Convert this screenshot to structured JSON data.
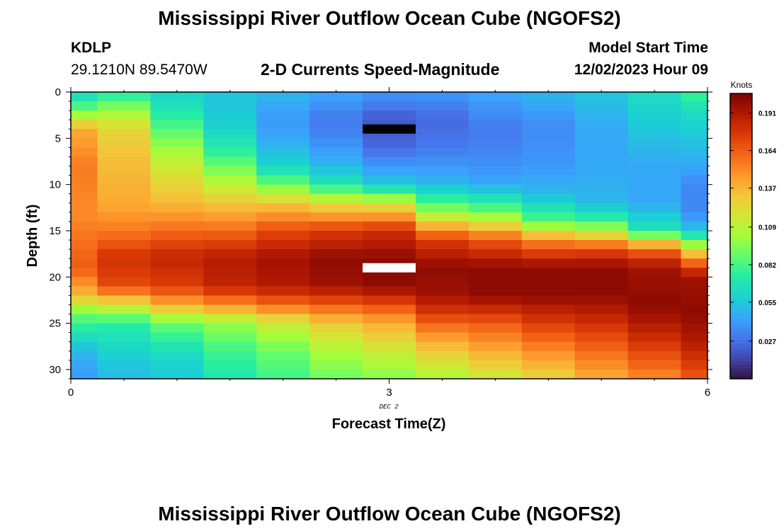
{
  "page": {
    "title": "Mississippi River Outflow Ocean Cube (NGOFS2)",
    "title_bottom": "Mississippi River Outflow Ocean Cube (NGOFS2)",
    "station_id": "KDLP",
    "coords": "29.1210N  89.5470W",
    "subtitle": "2-D Currents Speed-Magnitude",
    "model_start_label": "Model Start Time",
    "model_start_value": "12/02/2023 Hour 09"
  },
  "chart_data": {
    "type": "heatmap",
    "title": "2-D Currents Speed-Magnitude",
    "xlabel": "Forecast Time(Z)",
    "ylabel": "Depth (ft)",
    "x_ticks": [
      "0",
      "3",
      "6"
    ],
    "x_tick_values": [
      0,
      3,
      6
    ],
    "x_sublabel": "DEC 2",
    "y_ticks": [
      "0",
      "5",
      "10",
      "15",
      "20",
      "25",
      "30"
    ],
    "y_tick_values": [
      0,
      5,
      10,
      15,
      20,
      25,
      30
    ],
    "xlim": [
      0,
      6
    ],
    "ylim": [
      31,
      0
    ],
    "colorbar": {
      "label": "Knots",
      "ticks": [
        "0.027",
        "0.055",
        "0.082",
        "0.109",
        "0.137",
        "0.164",
        "0.191"
      ],
      "tick_values": [
        0.027,
        0.055,
        0.082,
        0.109,
        0.137,
        0.164,
        0.191
      ],
      "range": [
        0.0,
        0.205
      ],
      "colormap": "turbo"
    },
    "x": [
      0,
      0.5,
      1,
      1.5,
      2,
      2.5,
      3,
      3.5,
      4,
      4.5,
      5,
      5.5,
      6
    ],
    "depth_bins": 31,
    "depth_top": 0.0,
    "depth_bottom": 31.0,
    "column_profiles": [
      [
        [
          0,
          0.06
        ],
        [
          2,
          0.09
        ],
        [
          4,
          0.14
        ],
        [
          8,
          0.155
        ],
        [
          13,
          0.15
        ],
        [
          19,
          0.165
        ],
        [
          22,
          0.135
        ],
        [
          24,
          0.09
        ],
        [
          28,
          0.05
        ],
        [
          31,
          0.04
        ]
      ],
      [
        [
          0,
          0.07
        ],
        [
          2,
          0.1
        ],
        [
          4,
          0.125
        ],
        [
          8,
          0.135
        ],
        [
          12,
          0.14
        ],
        [
          15,
          0.155
        ],
        [
          18,
          0.18
        ],
        [
          21,
          0.17
        ],
        [
          23,
          0.12
        ],
        [
          25,
          0.075
        ],
        [
          28,
          0.06
        ],
        [
          31,
          0.05
        ]
      ],
      [
        [
          0,
          0.06
        ],
        [
          2,
          0.07
        ],
        [
          4,
          0.085
        ],
        [
          8,
          0.115
        ],
        [
          12,
          0.135
        ],
        [
          15,
          0.16
        ],
        [
          18,
          0.185
        ],
        [
          21,
          0.175
        ],
        [
          23,
          0.14
        ],
        [
          25,
          0.09
        ],
        [
          28,
          0.065
        ],
        [
          31,
          0.055
        ]
      ],
      [
        [
          0,
          0.055
        ],
        [
          2,
          0.055
        ],
        [
          4,
          0.06
        ],
        [
          7,
          0.08
        ],
        [
          10,
          0.11
        ],
        [
          13,
          0.14
        ],
        [
          15,
          0.16
        ],
        [
          18,
          0.19
        ],
        [
          21,
          0.185
        ],
        [
          23,
          0.15
        ],
        [
          25,
          0.1
        ],
        [
          28,
          0.08
        ],
        [
          31,
          0.07
        ]
      ],
      [
        [
          0,
          0.05
        ],
        [
          3,
          0.04
        ],
        [
          5,
          0.045
        ],
        [
          8,
          0.06
        ],
        [
          10,
          0.09
        ],
        [
          12,
          0.13
        ],
        [
          15,
          0.17
        ],
        [
          18,
          0.195
        ],
        [
          21,
          0.19
        ],
        [
          23,
          0.16
        ],
        [
          25,
          0.115
        ],
        [
          28,
          0.09
        ],
        [
          31,
          0.08
        ]
      ],
      [
        [
          0,
          0.045
        ],
        [
          3,
          0.03
        ],
        [
          5,
          0.035
        ],
        [
          8,
          0.05
        ],
        [
          10,
          0.07
        ],
        [
          12,
          0.12
        ],
        [
          15,
          0.175
        ],
        [
          18,
          0.2
        ],
        [
          21,
          0.195
        ],
        [
          23,
          0.165
        ],
        [
          25,
          0.13
        ],
        [
          28,
          0.105
        ],
        [
          31,
          0.09
        ]
      ],
      [
        [
          0,
          0.04
        ],
        [
          3,
          0.02
        ],
        [
          6,
          0.025
        ],
        [
          8,
          0.04
        ],
        [
          10,
          0.055
        ],
        [
          12,
          0.115
        ],
        [
          15,
          0.18
        ],
        [
          18,
          0.2
        ],
        [
          21,
          0.2
        ],
        [
          23,
          0.17
        ],
        [
          25,
          0.14
        ],
        [
          28,
          0.115
        ],
        [
          31,
          0.095
        ]
      ],
      [
        [
          0,
          0.04
        ],
        [
          3,
          0.025
        ],
        [
          6,
          0.03
        ],
        [
          8,
          0.04
        ],
        [
          10,
          0.05
        ],
        [
          13,
          0.1
        ],
        [
          16,
          0.175
        ],
        [
          19,
          0.2
        ],
        [
          22,
          0.195
        ],
        [
          24,
          0.175
        ],
        [
          26,
          0.15
        ],
        [
          28,
          0.13
        ],
        [
          31,
          0.105
        ]
      ],
      [
        [
          0,
          0.045
        ],
        [
          4,
          0.03
        ],
        [
          7,
          0.035
        ],
        [
          10,
          0.045
        ],
        [
          13,
          0.09
        ],
        [
          16,
          0.165
        ],
        [
          19,
          0.2
        ],
        [
          22,
          0.2
        ],
        [
          25,
          0.165
        ],
        [
          28,
          0.14
        ],
        [
          31,
          0.115
        ]
      ],
      [
        [
          0,
          0.05
        ],
        [
          4,
          0.035
        ],
        [
          8,
          0.04
        ],
        [
          11,
          0.05
        ],
        [
          14,
          0.085
        ],
        [
          16,
          0.15
        ],
        [
          19,
          0.2
        ],
        [
          22,
          0.2
        ],
        [
          25,
          0.175
        ],
        [
          28,
          0.15
        ],
        [
          31,
          0.125
        ]
      ],
      [
        [
          0,
          0.055
        ],
        [
          4,
          0.045
        ],
        [
          8,
          0.045
        ],
        [
          12,
          0.05
        ],
        [
          14,
          0.08
        ],
        [
          17,
          0.17
        ],
        [
          19,
          0.2
        ],
        [
          22,
          0.2
        ],
        [
          25,
          0.18
        ],
        [
          28,
          0.16
        ],
        [
          31,
          0.14
        ]
      ],
      [
        [
          0,
          0.065
        ],
        [
          4,
          0.055
        ],
        [
          8,
          0.045
        ],
        [
          12,
          0.045
        ],
        [
          15,
          0.07
        ],
        [
          17,
          0.16
        ],
        [
          19,
          0.195
        ],
        [
          23,
          0.2
        ],
        [
          26,
          0.185
        ],
        [
          29,
          0.165
        ],
        [
          31,
          0.15
        ]
      ],
      [
        [
          0,
          0.08
        ],
        [
          2,
          0.065
        ],
        [
          5,
          0.055
        ],
        [
          8,
          0.045
        ],
        [
          10,
          0.035
        ],
        [
          13,
          0.035
        ],
        [
          15,
          0.055
        ],
        [
          16,
          0.085
        ],
        [
          18,
          0.15
        ],
        [
          20,
          0.195
        ],
        [
          24,
          0.2
        ],
        [
          27,
          0.19
        ],
        [
          31,
          0.165
        ]
      ]
    ],
    "min_marker": {
      "x": 3.0,
      "depth": 4.0,
      "color": "#000000"
    },
    "max_marker": {
      "x": 3.0,
      "depth": 19.0,
      "color": "#ffffff"
    }
  }
}
